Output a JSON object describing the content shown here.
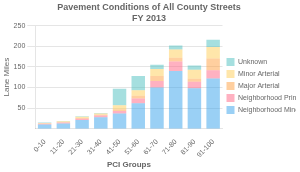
{
  "chart_data": {
    "type": "bar",
    "stacked": true,
    "title": "Pavement Conditions of All County Streets\nFY 2013",
    "xlabel": "PCI Groups",
    "ylabel": "Lane Miles",
    "categories": [
      "0-10",
      "11-20",
      "21-30",
      "31-40",
      "41-50",
      "51-60",
      "61-70",
      "71-80",
      "81-90",
      "91-100"
    ],
    "series": [
      {
        "name": "Neighborhood Minor",
        "values": [
          10,
          13,
          21,
          28,
          37,
          62,
          100,
          140,
          98,
          122
        ]
      },
      {
        "name": "Neighborhood Principal",
        "values": [
          2,
          2,
          3,
          4,
          6,
          11,
          16,
          23,
          16,
          20
        ]
      },
      {
        "name": "Major Arterial",
        "values": [
          1,
          1,
          2,
          2,
          4,
          7,
          12,
          9,
          7,
          28
        ]
      },
      {
        "name": "Minor Arterial",
        "values": [
          1,
          2,
          3,
          3,
          10,
          13,
          17,
          20,
          22,
          28
        ]
      },
      {
        "name": "Unknown",
        "values": [
          1,
          1,
          1,
          1,
          40,
          35,
          10,
          10,
          10,
          18
        ]
      }
    ],
    "ylim": [
      0,
      250
    ],
    "yticks": [
      50,
      100,
      150,
      200,
      250
    ],
    "grid": true,
    "legend": "right"
  }
}
